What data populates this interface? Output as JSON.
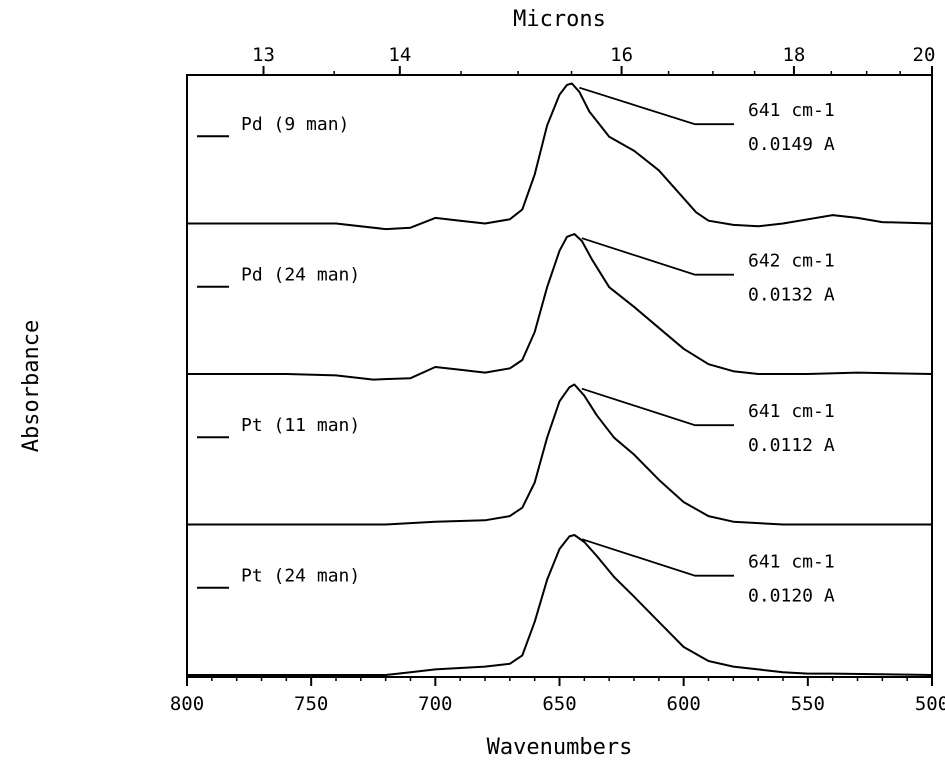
{
  "chart_data": {
    "type": "line",
    "xlabel": "Wavenumbers",
    "ylabel": "Absorbance",
    "x2label": "Microns",
    "xlim": [
      800,
      500
    ],
    "x_ticks": [
      "800",
      "750",
      "700",
      "650",
      "600",
      "550",
      "500"
    ],
    "x2_ticks": [
      {
        "wavenumber": 769.2,
        "label": "13"
      },
      {
        "wavenumber": 714.3,
        "label": "14"
      },
      {
        "wavenumber": 625.0,
        "label": "16"
      },
      {
        "wavenumber": 555.6,
        "label": "18"
      },
      {
        "wavenumber": 500.0,
        "label": "20"
      }
    ],
    "grid": false,
    "stacked_offset_panels": 4,
    "series": [
      {
        "name": "Pd (9 man)",
        "peak_label": "641 cm-1",
        "absorbance_label": "0.0149 A",
        "points": [
          [
            800,
            0
          ],
          [
            760,
            0
          ],
          [
            740,
            0
          ],
          [
            720,
            -0.04
          ],
          [
            710,
            -0.03
          ],
          [
            700,
            0.04
          ],
          [
            690,
            0.02
          ],
          [
            680,
            0
          ],
          [
            670,
            0.03
          ],
          [
            665,
            0.1
          ],
          [
            660,
            0.35
          ],
          [
            655,
            0.7
          ],
          [
            650,
            0.92
          ],
          [
            647,
            0.99
          ],
          [
            645,
            1.0
          ],
          [
            642,
            0.94
          ],
          [
            638,
            0.8
          ],
          [
            630,
            0.62
          ],
          [
            620,
            0.52
          ],
          [
            610,
            0.38
          ],
          [
            600,
            0.18
          ],
          [
            595,
            0.08
          ],
          [
            590,
            0.02
          ],
          [
            580,
            -0.01
          ],
          [
            570,
            -0.02
          ],
          [
            560,
            0
          ],
          [
            550,
            0.03
          ],
          [
            540,
            0.06
          ],
          [
            530,
            0.04
          ],
          [
            520,
            0.01
          ],
          [
            500,
            0
          ]
        ]
      },
      {
        "name": "Pd (24 man)",
        "peak_label": "642 cm-1",
        "absorbance_label": "0.0132 A",
        "points": [
          [
            800,
            0
          ],
          [
            760,
            0
          ],
          [
            740,
            -0.01
          ],
          [
            725,
            -0.04
          ],
          [
            710,
            -0.03
          ],
          [
            700,
            0.05
          ],
          [
            690,
            0.03
          ],
          [
            680,
            0.01
          ],
          [
            670,
            0.04
          ],
          [
            665,
            0.1
          ],
          [
            660,
            0.3
          ],
          [
            655,
            0.62
          ],
          [
            650,
            0.88
          ],
          [
            647,
            0.98
          ],
          [
            644,
            1.0
          ],
          [
            641,
            0.95
          ],
          [
            637,
            0.82
          ],
          [
            630,
            0.62
          ],
          [
            620,
            0.48
          ],
          [
            610,
            0.33
          ],
          [
            600,
            0.18
          ],
          [
            590,
            0.07
          ],
          [
            580,
            0.02
          ],
          [
            570,
            0
          ],
          [
            550,
            0
          ],
          [
            530,
            0.01
          ],
          [
            500,
            0
          ]
        ]
      },
      {
        "name": "Pt (11 man)",
        "peak_label": "641 cm-1",
        "absorbance_label": "0.0112 A",
        "points": [
          [
            800,
            0
          ],
          [
            760,
            0
          ],
          [
            740,
            0
          ],
          [
            720,
            0
          ],
          [
            710,
            0.01
          ],
          [
            700,
            0.02
          ],
          [
            680,
            0.03
          ],
          [
            670,
            0.06
          ],
          [
            665,
            0.12
          ],
          [
            660,
            0.3
          ],
          [
            655,
            0.62
          ],
          [
            650,
            0.88
          ],
          [
            646,
            0.98
          ],
          [
            644,
            1.0
          ],
          [
            640,
            0.92
          ],
          [
            635,
            0.78
          ],
          [
            628,
            0.62
          ],
          [
            620,
            0.5
          ],
          [
            610,
            0.32
          ],
          [
            600,
            0.16
          ],
          [
            590,
            0.06
          ],
          [
            580,
            0.02
          ],
          [
            560,
            0
          ],
          [
            500,
            0
          ]
        ]
      },
      {
        "name": "Pt (24 man)",
        "peak_label": "641 cm-1",
        "absorbance_label": "0.0120 A",
        "points": [
          [
            800,
            0
          ],
          [
            760,
            0
          ],
          [
            720,
            0
          ],
          [
            710,
            0.02
          ],
          [
            700,
            0.04
          ],
          [
            690,
            0.05
          ],
          [
            680,
            0.06
          ],
          [
            670,
            0.08
          ],
          [
            665,
            0.14
          ],
          [
            660,
            0.38
          ],
          [
            655,
            0.68
          ],
          [
            650,
            0.9
          ],
          [
            646,
            0.99
          ],
          [
            644,
            1.0
          ],
          [
            640,
            0.95
          ],
          [
            635,
            0.85
          ],
          [
            628,
            0.7
          ],
          [
            620,
            0.56
          ],
          [
            610,
            0.38
          ],
          [
            600,
            0.2
          ],
          [
            590,
            0.1
          ],
          [
            580,
            0.06
          ],
          [
            570,
            0.04
          ],
          [
            560,
            0.02
          ],
          [
            550,
            0.01
          ],
          [
            540,
            0.01
          ],
          [
            500,
            0
          ]
        ]
      }
    ]
  }
}
